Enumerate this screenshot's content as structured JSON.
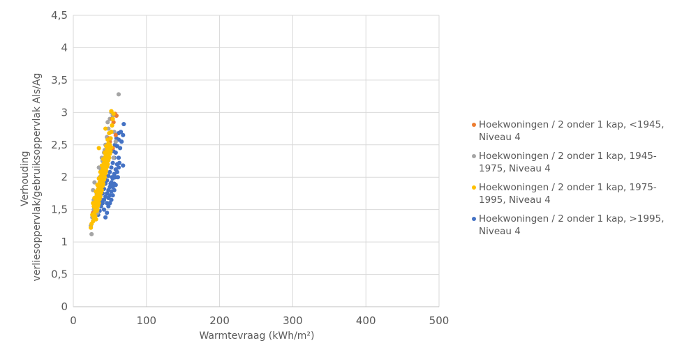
{
  "chart_data": {
    "type": "scatter",
    "title": "",
    "xlabel": "Warmtevraag (kWh/m²)",
    "ylabel": [
      "Verhouding",
      "verliesoppervlak/gebruiksoppervlak Als/Ag"
    ],
    "xlim": [
      0,
      500
    ],
    "ylim": [
      0,
      4.5
    ],
    "x_ticks": [
      "0",
      "100",
      "200",
      "300",
      "400",
      "500"
    ],
    "y_ticks": [
      "0",
      "0,5",
      "1",
      "1,5",
      "2",
      "2,5",
      "3",
      "3,5",
      "4",
      "4,5"
    ],
    "grid": true,
    "legend_position": "right",
    "series": [
      {
        "name": "Hoekwoningen / 2 onder 1 kap, <1945, Niveau 4",
        "legend_lines": [
          "Hoekwoningen / 2 onder 1 kap, <1945,",
          "Niveau 4"
        ],
        "color": "#ED7D31",
        "points": [
          [
            29,
            1.55
          ],
          [
            33,
            1.75
          ],
          [
            37,
            1.95
          ],
          [
            40,
            2.1
          ],
          [
            42,
            2.2
          ],
          [
            44,
            2.28
          ],
          [
            46,
            2.35
          ],
          [
            48,
            2.5
          ],
          [
            50,
            2.55
          ],
          [
            52,
            2.7
          ],
          [
            55,
            2.85
          ],
          [
            57,
            2.98
          ],
          [
            59,
            2.95
          ],
          [
            54,
            2.45
          ],
          [
            45,
            2.4
          ],
          [
            38,
            1.9
          ],
          [
            35,
            1.8
          ],
          [
            31,
            1.6
          ],
          [
            27,
            1.45
          ],
          [
            47,
            2.2
          ],
          [
            43,
            2.05
          ],
          [
            53,
            2.9
          ],
          [
            58,
            2.65
          ],
          [
            49,
            2.6
          ]
        ]
      },
      {
        "name": "Hoekwoningen / 2 onder 1 kap, 1945-1975, Niveau 4",
        "legend_lines": [
          "Hoekwoningen / 2 onder 1 kap, 1945-",
          "1975, Niveau 4"
        ],
        "color": "#A5A5A5",
        "points": [
          [
            25,
            1.12
          ],
          [
            24,
            1.25
          ],
          [
            26,
            1.38
          ],
          [
            28,
            1.5
          ],
          [
            30,
            1.62
          ],
          [
            32,
            1.75
          ],
          [
            34,
            1.88
          ],
          [
            36,
            2.0
          ],
          [
            38,
            2.12
          ],
          [
            40,
            2.25
          ],
          [
            42,
            2.38
          ],
          [
            44,
            2.5
          ],
          [
            46,
            2.62
          ],
          [
            48,
            2.75
          ],
          [
            50,
            2.9
          ],
          [
            52,
            3.0
          ],
          [
            54,
            2.95
          ],
          [
            56,
            2.7
          ],
          [
            58,
            2.55
          ],
          [
            62,
            3.28
          ],
          [
            29,
            1.92
          ],
          [
            27,
            1.8
          ],
          [
            33,
            1.45
          ],
          [
            37,
            1.7
          ],
          [
            41,
            1.9
          ],
          [
            45,
            2.1
          ],
          [
            49,
            2.4
          ],
          [
            51,
            2.6
          ],
          [
            53,
            2.8
          ],
          [
            31,
            1.35
          ],
          [
            35,
            2.15
          ],
          [
            39,
            2.3
          ],
          [
            43,
            2.42
          ],
          [
            47,
            2.85
          ],
          [
            55,
            2.3
          ],
          [
            28,
            1.65
          ]
        ]
      },
      {
        "name": "Hoekwoningen / 2 onder 1 kap, 1975-1995, Niveau 4",
        "legend_lines": [
          "Hoekwoningen / 2 onder 1 kap, 1975-",
          "1995, Niveau 4"
        ],
        "color": "#FFC000",
        "points": [
          [
            24,
            1.22
          ],
          [
            25,
            1.28
          ],
          [
            27,
            1.32
          ],
          [
            28,
            1.38
          ],
          [
            29,
            1.45
          ],
          [
            30,
            1.5
          ],
          [
            31,
            1.55
          ],
          [
            32,
            1.6
          ],
          [
            33,
            1.65
          ],
          [
            34,
            1.7
          ],
          [
            35,
            1.75
          ],
          [
            36,
            1.8
          ],
          [
            37,
            1.85
          ],
          [
            38,
            1.9
          ],
          [
            39,
            1.95
          ],
          [
            40,
            2.0
          ],
          [
            41,
            2.05
          ],
          [
            42,
            2.1
          ],
          [
            43,
            2.15
          ],
          [
            44,
            2.2
          ],
          [
            45,
            2.25
          ],
          [
            46,
            2.3
          ],
          [
            47,
            2.35
          ],
          [
            48,
            2.4
          ],
          [
            49,
            2.45
          ],
          [
            50,
            2.5
          ],
          [
            51,
            2.6
          ],
          [
            52,
            2.7
          ],
          [
            53,
            2.8
          ],
          [
            54,
            2.9
          ],
          [
            55,
            2.98
          ],
          [
            52,
            3.02
          ],
          [
            26,
            1.42
          ],
          [
            28,
            1.55
          ],
          [
            30,
            1.62
          ],
          [
            32,
            1.72
          ],
          [
            34,
            1.82
          ],
          [
            36,
            1.92
          ],
          [
            38,
            2.02
          ],
          [
            40,
            2.12
          ],
          [
            42,
            2.22
          ],
          [
            44,
            2.32
          ],
          [
            46,
            2.42
          ],
          [
            48,
            2.52
          ],
          [
            30,
            1.4
          ],
          [
            32,
            1.48
          ],
          [
            34,
            1.56
          ],
          [
            36,
            1.66
          ],
          [
            38,
            1.76
          ],
          [
            40,
            1.86
          ],
          [
            42,
            1.96
          ],
          [
            44,
            2.06
          ],
          [
            46,
            2.16
          ],
          [
            48,
            2.26
          ],
          [
            50,
            2.36
          ],
          [
            52,
            2.46
          ],
          [
            29,
            1.68
          ],
          [
            31,
            1.78
          ],
          [
            33,
            1.88
          ],
          [
            35,
            1.98
          ],
          [
            37,
            2.08
          ],
          [
            39,
            2.18
          ],
          [
            41,
            2.28
          ],
          [
            43,
            2.38
          ],
          [
            45,
            2.48
          ],
          [
            47,
            2.58
          ],
          [
            49,
            2.68
          ],
          [
            44,
            2.75
          ],
          [
            35,
            2.45
          ],
          [
            27,
            1.6
          ],
          [
            31,
            1.35
          ],
          [
            33,
            1.5
          ],
          [
            35,
            1.6
          ],
          [
            37,
            1.7
          ],
          [
            39,
            1.8
          ],
          [
            41,
            1.9
          ],
          [
            43,
            2.0
          ],
          [
            45,
            2.1
          ],
          [
            47,
            2.2
          ],
          [
            49,
            2.3
          ],
          [
            51,
            2.4
          ]
        ]
      },
      {
        "name": "Hoekwoningen / 2 onder 1 kap, >1995, Niveau 4",
        "legend_lines": [
          "Hoekwoningen / 2 onder 1 kap, >1995,",
          "Niveau 4"
        ],
        "color": "#4472C4",
        "points": [
          [
            34,
            1.42
          ],
          [
            36,
            1.48
          ],
          [
            38,
            1.55
          ],
          [
            40,
            1.6
          ],
          [
            42,
            1.65
          ],
          [
            44,
            1.7
          ],
          [
            46,
            1.75
          ],
          [
            48,
            1.8
          ],
          [
            50,
            1.85
          ],
          [
            52,
            1.92
          ],
          [
            54,
            1.98
          ],
          [
            56,
            2.05
          ],
          [
            58,
            2.12
          ],
          [
            60,
            2.2
          ],
          [
            62,
            2.3
          ],
          [
            64,
            2.45
          ],
          [
            66,
            2.55
          ],
          [
            68,
            2.65
          ],
          [
            62,
            2.68
          ],
          [
            65,
            2.7
          ],
          [
            69,
            2.82
          ],
          [
            68,
            2.18
          ],
          [
            63,
            2.22
          ],
          [
            44,
            1.38
          ],
          [
            42,
            1.5
          ],
          [
            46,
            1.6
          ],
          [
            48,
            1.68
          ],
          [
            50,
            1.72
          ],
          [
            52,
            1.78
          ],
          [
            54,
            1.85
          ],
          [
            56,
            1.9
          ],
          [
            58,
            2.0
          ],
          [
            60,
            2.08
          ],
          [
            62,
            2.15
          ],
          [
            40,
            1.75
          ],
          [
            42,
            1.82
          ],
          [
            44,
            1.9
          ],
          [
            46,
            1.95
          ],
          [
            48,
            2.02
          ],
          [
            50,
            2.08
          ],
          [
            52,
            2.15
          ],
          [
            54,
            2.22
          ],
          [
            56,
            2.3
          ],
          [
            58,
            2.38
          ],
          [
            60,
            2.48
          ],
          [
            62,
            2.58
          ],
          [
            38,
            1.65
          ],
          [
            40,
            1.95
          ],
          [
            42,
            2.05
          ],
          [
            44,
            2.12
          ],
          [
            46,
            2.2
          ],
          [
            48,
            1.55
          ],
          [
            50,
            1.6
          ],
          [
            52,
            1.65
          ],
          [
            54,
            1.72
          ],
          [
            56,
            1.8
          ],
          [
            58,
            1.88
          ],
          [
            36,
            1.7
          ],
          [
            46,
            1.45
          ],
          [
            55,
            2.4
          ],
          [
            57,
            2.5
          ],
          [
            59,
            2.6
          ],
          [
            61,
            2.0
          ],
          [
            53,
            2.0
          ],
          [
            51,
            1.9
          ]
        ]
      }
    ]
  }
}
